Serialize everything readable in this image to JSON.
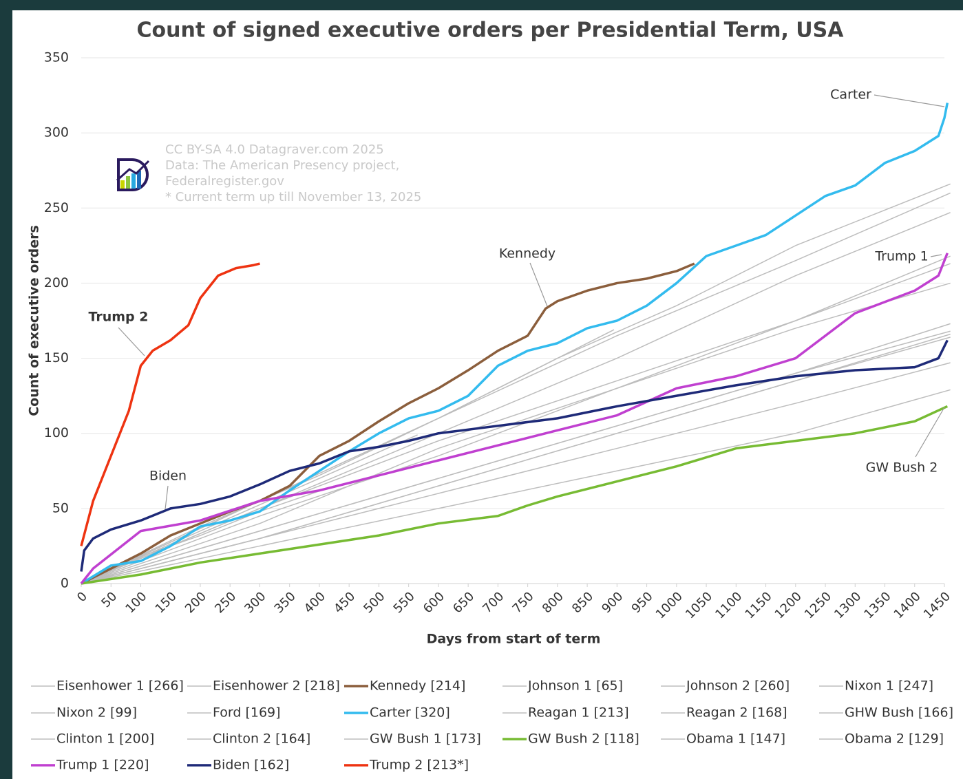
{
  "chart_data": {
    "type": "line",
    "title": "Count of signed executive orders per Presidential Term, USA",
    "xlabel": "Days from start of term",
    "ylabel": "Count of executive orders",
    "xlim": [
      0,
      1450
    ],
    "ylim": [
      0,
      350
    ],
    "xticks": [
      0,
      50,
      100,
      150,
      200,
      250,
      300,
      350,
      400,
      450,
      500,
      550,
      600,
      650,
      700,
      750,
      800,
      850,
      900,
      950,
      1000,
      1050,
      1100,
      1150,
      1200,
      1250,
      1300,
      1350,
      1400,
      1450
    ],
    "yticks": [
      0,
      50,
      100,
      150,
      200,
      250,
      300,
      350
    ],
    "grid": true,
    "source": [
      "CC BY-SA 4.0 Datagraver.com 2025",
      "Data: The American Presency project,",
      "Federalregister.gov",
      "* Current term up till November 13, 2025"
    ],
    "annotations": [
      "Carter",
      "Kennedy",
      "Trump 1",
      "Trump 2",
      "Biden",
      "GW Bush 2"
    ],
    "series": [
      {
        "name": "Eisenhower 1 [266]",
        "color": "#bdbdbd",
        "x": [
          0,
          200,
          400,
          600,
          800,
          1000,
          1200,
          1460
        ],
        "values": [
          0,
          38,
          72,
          110,
          150,
          185,
          225,
          266
        ]
      },
      {
        "name": "Eisenhower 2 [218]",
        "color": "#bdbdbd",
        "x": [
          0,
          300,
          600,
          900,
          1200,
          1460
        ],
        "values": [
          0,
          45,
          85,
          130,
          175,
          218
        ]
      },
      {
        "name": "Kennedy [214]",
        "color": "#8b5e3c",
        "x": [
          0,
          50,
          100,
          150,
          200,
          250,
          300,
          350,
          400,
          450,
          500,
          550,
          600,
          650,
          700,
          750,
          780,
          800,
          850,
          900,
          950,
          1000,
          1030
        ],
        "values": [
          0,
          10,
          20,
          32,
          40,
          48,
          55,
          65,
          85,
          95,
          108,
          120,
          130,
          142,
          155,
          165,
          183,
          188,
          195,
          200,
          203,
          208,
          213
        ]
      },
      {
        "name": "Johnson 1 [65]",
        "color": "#bdbdbd",
        "x": [
          0,
          100,
          200,
          300,
          425
        ],
        "values": [
          0,
          18,
          32,
          48,
          65
        ]
      },
      {
        "name": "Johnson 2 [260]",
        "color": "#bdbdbd",
        "x": [
          0,
          300,
          600,
          900,
          1200,
          1460
        ],
        "values": [
          0,
          55,
          110,
          165,
          215,
          260
        ]
      },
      {
        "name": "Nixon 1 [247]",
        "color": "#bdbdbd",
        "x": [
          0,
          300,
          600,
          900,
          1200,
          1460
        ],
        "values": [
          0,
          50,
          100,
          150,
          205,
          247
        ]
      },
      {
        "name": "Nixon 2 [99]",
        "color": "#bdbdbd",
        "x": [
          0,
          200,
          400,
          565
        ],
        "values": [
          0,
          35,
          70,
          99
        ]
      },
      {
        "name": "Ford [169]",
        "color": "#bdbdbd",
        "x": [
          0,
          300,
          600,
          895
        ],
        "values": [
          0,
          55,
          110,
          169
        ]
      },
      {
        "name": "Carter [320]",
        "color": "#33bbee",
        "x": [
          0,
          50,
          100,
          150,
          200,
          250,
          300,
          350,
          400,
          450,
          500,
          550,
          600,
          650,
          700,
          750,
          800,
          850,
          900,
          950,
          1000,
          1050,
          1100,
          1150,
          1200,
          1250,
          1300,
          1350,
          1400,
          1440,
          1450,
          1455
        ],
        "values": [
          0,
          12,
          15,
          25,
          38,
          42,
          48,
          62,
          75,
          88,
          100,
          110,
          115,
          125,
          145,
          155,
          160,
          170,
          175,
          185,
          200,
          218,
          225,
          232,
          245,
          258,
          265,
          280,
          288,
          298,
          310,
          320
        ]
      },
      {
        "name": "Reagan 1 [213]",
        "color": "#bdbdbd",
        "x": [
          0,
          300,
          600,
          900,
          1200,
          1460
        ],
        "values": [
          0,
          50,
          95,
          135,
          175,
          213
        ]
      },
      {
        "name": "Reagan 2 [168]",
        "color": "#bdbdbd",
        "x": [
          0,
          300,
          600,
          900,
          1200,
          1460
        ],
        "values": [
          0,
          35,
          70,
          105,
          140,
          168
        ]
      },
      {
        "name": "GHW Bush [166]",
        "color": "#bdbdbd",
        "x": [
          0,
          300,
          600,
          900,
          1200,
          1460
        ],
        "values": [
          0,
          30,
          65,
          100,
          135,
          166
        ]
      },
      {
        "name": "Clinton 1 [200]",
        "color": "#bdbdbd",
        "x": [
          0,
          300,
          600,
          900,
          1200,
          1460
        ],
        "values": [
          0,
          40,
          90,
          130,
          170,
          200
        ]
      },
      {
        "name": "Clinton 2 [164]",
        "color": "#bdbdbd",
        "x": [
          0,
          300,
          600,
          900,
          1200,
          1460
        ],
        "values": [
          0,
          30,
          65,
          100,
          135,
          164
        ]
      },
      {
        "name": "GW Bush 1 [173]",
        "color": "#bdbdbd",
        "x": [
          0,
          300,
          600,
          900,
          1200,
          1460
        ],
        "values": [
          0,
          35,
          70,
          105,
          140,
          173
        ]
      },
      {
        "name": "GW Bush 2 [118]",
        "color": "#77bb33",
        "x": [
          0,
          100,
          200,
          300,
          400,
          500,
          600,
          700,
          750,
          800,
          900,
          1000,
          1100,
          1200,
          1300,
          1400,
          1455
        ],
        "values": [
          0,
          6,
          14,
          20,
          26,
          32,
          40,
          45,
          52,
          58,
          68,
          78,
          90,
          95,
          100,
          108,
          118
        ]
      },
      {
        "name": "Obama 1 [147]",
        "color": "#bdbdbd",
        "x": [
          0,
          300,
          600,
          900,
          1200,
          1460
        ],
        "values": [
          0,
          30,
          60,
          90,
          120,
          147
        ]
      },
      {
        "name": "Obama 2 [129]",
        "color": "#bdbdbd",
        "x": [
          0,
          300,
          600,
          900,
          1200,
          1460
        ],
        "values": [
          0,
          25,
          50,
          75,
          100,
          129
        ]
      },
      {
        "name": "Trump 1 [220]",
        "color": "#c040d0",
        "x": [
          0,
          20,
          100,
          200,
          300,
          400,
          500,
          600,
          700,
          800,
          900,
          1000,
          1100,
          1200,
          1300,
          1400,
          1440,
          1455
        ],
        "values": [
          0,
          10,
          35,
          42,
          55,
          62,
          72,
          82,
          92,
          102,
          112,
          130,
          138,
          150,
          180,
          195,
          205,
          220
        ]
      },
      {
        "name": "Biden [162]",
        "color": "#1e2a78",
        "x": [
          0,
          5,
          20,
          50,
          100,
          150,
          200,
          250,
          300,
          350,
          400,
          450,
          500,
          550,
          600,
          700,
          800,
          900,
          1000,
          1100,
          1200,
          1300,
          1400,
          1440,
          1455
        ],
        "values": [
          8,
          22,
          30,
          36,
          42,
          50,
          53,
          58,
          66,
          75,
          80,
          88,
          91,
          95,
          100,
          105,
          110,
          118,
          125,
          132,
          138,
          142,
          144,
          150,
          162
        ]
      },
      {
        "name": "Trump 2 [213*]",
        "color": "#ee3311",
        "x": [
          0,
          10,
          20,
          40,
          60,
          80,
          100,
          120,
          150,
          180,
          200,
          230,
          260,
          290,
          300
        ],
        "values": [
          25,
          40,
          55,
          75,
          95,
          115,
          145,
          155,
          162,
          172,
          190,
          205,
          210,
          212,
          213
        ]
      }
    ]
  }
}
